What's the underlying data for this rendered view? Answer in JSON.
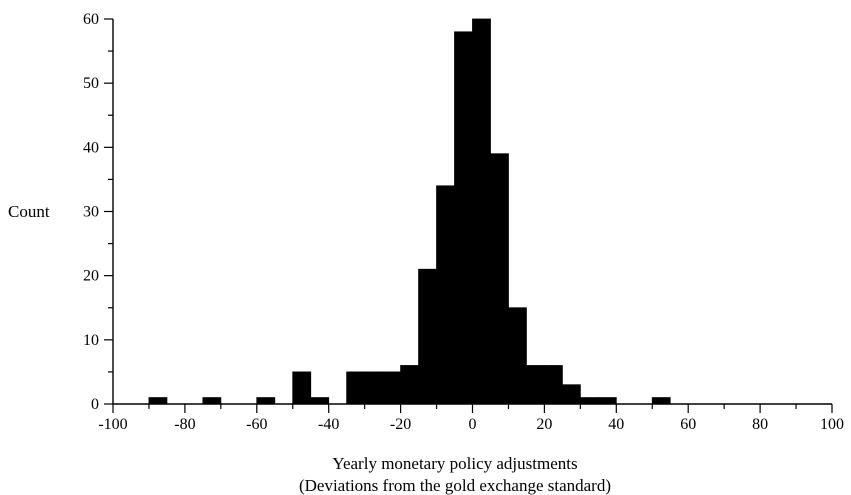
{
  "chart_data": {
    "type": "bar",
    "title": "",
    "ylabel": "Count",
    "xlabel": "Yearly monetary policy adjustments",
    "xlabel2": "(Deviations from the gold exchange standard)",
    "xlim": [
      -100,
      100
    ],
    "ylim": [
      0,
      60
    ],
    "x_ticks": [
      -100,
      -80,
      -60,
      -40,
      -20,
      0,
      20,
      40,
      60,
      80,
      100
    ],
    "y_ticks": [
      0,
      10,
      20,
      30,
      40,
      50,
      60
    ],
    "bin_width": 5,
    "bins": [
      {
        "x0": -90,
        "x1": -85,
        "count": 1
      },
      {
        "x0": -75,
        "x1": -70,
        "count": 1
      },
      {
        "x0": -60,
        "x1": -55,
        "count": 1
      },
      {
        "x0": -50,
        "x1": -45,
        "count": 5
      },
      {
        "x0": -45,
        "x1": -40,
        "count": 1
      },
      {
        "x0": -35,
        "x1": -30,
        "count": 5
      },
      {
        "x0": -30,
        "x1": -25,
        "count": 5
      },
      {
        "x0": -25,
        "x1": -20,
        "count": 5
      },
      {
        "x0": -20,
        "x1": -15,
        "count": 6
      },
      {
        "x0": -15,
        "x1": -10,
        "count": 21
      },
      {
        "x0": -10,
        "x1": -5,
        "count": 34
      },
      {
        "x0": -5,
        "x1": 0,
        "count": 58
      },
      {
        "x0": 0,
        "x1": 5,
        "count": 60
      },
      {
        "x0": 5,
        "x1": 10,
        "count": 39
      },
      {
        "x0": 10,
        "x1": 15,
        "count": 15
      },
      {
        "x0": 15,
        "x1": 20,
        "count": 6
      },
      {
        "x0": 20,
        "x1": 25,
        "count": 6
      },
      {
        "x0": 25,
        "x1": 30,
        "count": 3
      },
      {
        "x0": 30,
        "x1": 35,
        "count": 1
      },
      {
        "x0": 35,
        "x1": 40,
        "count": 1
      },
      {
        "x0": 50,
        "x1": 55,
        "count": 1
      }
    ],
    "grid": false,
    "bar_color": "#000000"
  }
}
